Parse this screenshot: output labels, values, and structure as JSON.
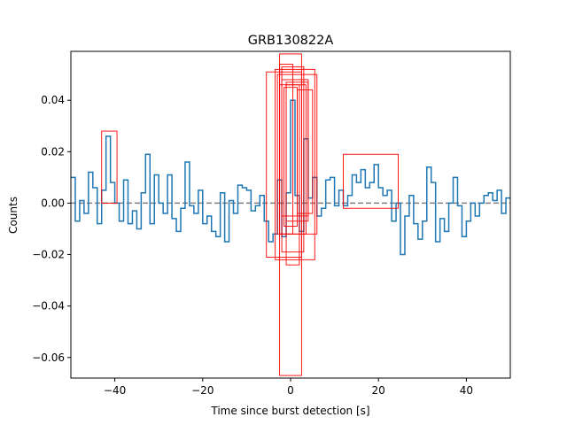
{
  "chart_data": {
    "type": "line",
    "title": "GRB130822A",
    "xlabel": "Time since burst detection [s]",
    "ylabel": "Counts",
    "xlim": [
      -50,
      50
    ],
    "ylim": [
      -0.068,
      0.059
    ],
    "xticks": [
      -40,
      -20,
      0,
      20,
      40
    ],
    "xtick_labels": [
      "−40",
      "−20",
      "0",
      "20",
      "40"
    ],
    "yticks": [
      -0.06,
      -0.04,
      -0.02,
      0.0,
      0.02,
      0.04
    ],
    "ytick_labels": [
      "−0.06",
      "−0.04",
      "−0.02",
      "0.00",
      "0.02",
      "0.04"
    ],
    "grid": false,
    "baseline": {
      "y": 0,
      "style": "dashed",
      "color": "#7f7f7f"
    },
    "colors": {
      "series": "#1f77b4",
      "boxes": "#ff0000",
      "baseline": "#7f7f7f"
    },
    "series": [
      {
        "step": 1,
        "x": [
          -50,
          -49,
          -48,
          -47,
          -46,
          -45,
          -44,
          -43,
          -42,
          -41,
          -40,
          -39,
          -38,
          -37,
          -36,
          -35,
          -34,
          -33,
          -32,
          -31,
          -30,
          -29,
          -28,
          -27,
          -26,
          -25,
          -24,
          -23,
          -22,
          -21,
          -20,
          -19,
          -18,
          -17,
          -16,
          -15,
          -14,
          -13,
          -12,
          -11,
          -10,
          -9,
          -8,
          -7,
          -6,
          -5,
          -4,
          -3,
          -2,
          -1,
          0,
          1,
          2,
          3,
          4,
          5,
          6,
          7,
          8,
          9,
          10,
          11,
          12,
          13,
          14,
          15,
          16,
          17,
          18,
          19,
          20,
          21,
          22,
          23,
          24,
          25,
          26,
          27,
          28,
          29,
          30,
          31,
          32,
          33,
          34,
          35,
          36,
          37,
          38,
          39,
          40,
          41,
          42,
          43,
          44,
          45,
          46,
          47,
          48,
          49
        ],
        "values": [
          0.01,
          -0.007,
          0.001,
          -0.004,
          0.012,
          0.006,
          -0.008,
          0.005,
          0.026,
          0.008,
          0.0,
          -0.007,
          0.009,
          -0.008,
          -0.003,
          -0.01,
          0.004,
          0.019,
          -0.008,
          0.011,
          0.0,
          -0.004,
          0.011,
          -0.006,
          -0.011,
          -0.002,
          0.016,
          -0.001,
          -0.004,
          0.005,
          -0.008,
          -0.005,
          -0.011,
          -0.013,
          0.004,
          -0.015,
          0.001,
          -0.004,
          0.007,
          0.006,
          0.005,
          -0.003,
          -0.001,
          0.003,
          -0.007,
          -0.015,
          -0.012,
          0.009,
          -0.013,
          0.004,
          0.04,
          0.003,
          -0.011,
          0.025,
          0.002,
          0.01,
          -0.005,
          -0.002,
          0.009,
          0.01,
          -0.001,
          0.005,
          -0.001,
          0.003,
          0.011,
          0.008,
          0.013,
          0.006,
          0.008,
          0.015,
          0.006,
          0.003,
          0.005,
          -0.007,
          0.0,
          -0.02,
          -0.005,
          0.003,
          -0.008,
          -0.014,
          -0.007,
          0.014,
          0.008,
          -0.015,
          -0.006,
          -0.011,
          0.0,
          0.01,
          -0.001,
          -0.013,
          -0.007,
          0.0,
          -0.005,
          0.0,
          0.003,
          0.004,
          0.001,
          0.005,
          -0.004,
          0.002
        ]
      }
    ],
    "boxes": [
      {
        "x0": -43,
        "x1": -39.5,
        "y0": 0.0,
        "y1": 0.028
      },
      {
        "x0": 12,
        "x1": 24.5,
        "y0": -0.002,
        "y1": 0.019
      },
      {
        "x0": -2.5,
        "x1": 2.5,
        "y0": -0.067,
        "y1": 0.058
      },
      {
        "x0": -5.5,
        "x1": 2.5,
        "y0": -0.021,
        "y1": 0.051
      },
      {
        "x0": -3.5,
        "x1": 5.5,
        "y0": -0.022,
        "y1": 0.052
      },
      {
        "x0": -3.0,
        "x1": 6.0,
        "y0": -0.012,
        "y1": 0.05
      },
      {
        "x0": -2.0,
        "x1": 3.0,
        "y0": -0.019,
        "y1": 0.053
      },
      {
        "x0": -1.0,
        "x1": 2.0,
        "y0": -0.024,
        "y1": 0.046
      },
      {
        "x0": -2.5,
        "x1": 3.5,
        "y0": -0.012,
        "y1": 0.046
      },
      {
        "x0": -1.5,
        "x1": 1.5,
        "y0": -0.009,
        "y1": 0.045
      },
      {
        "x0": -2.0,
        "x1": 4.0,
        "y0": -0.005,
        "y1": 0.048
      },
      {
        "x0": 1.5,
        "x1": 5.0,
        "y0": -0.004,
        "y1": 0.044
      },
      {
        "x0": -2.5,
        "x1": 0.5,
        "y0": -0.012,
        "y1": 0.054
      },
      {
        "x0": -1.0,
        "x1": 4.0,
        "y0": -0.007,
        "y1": 0.047
      }
    ]
  }
}
